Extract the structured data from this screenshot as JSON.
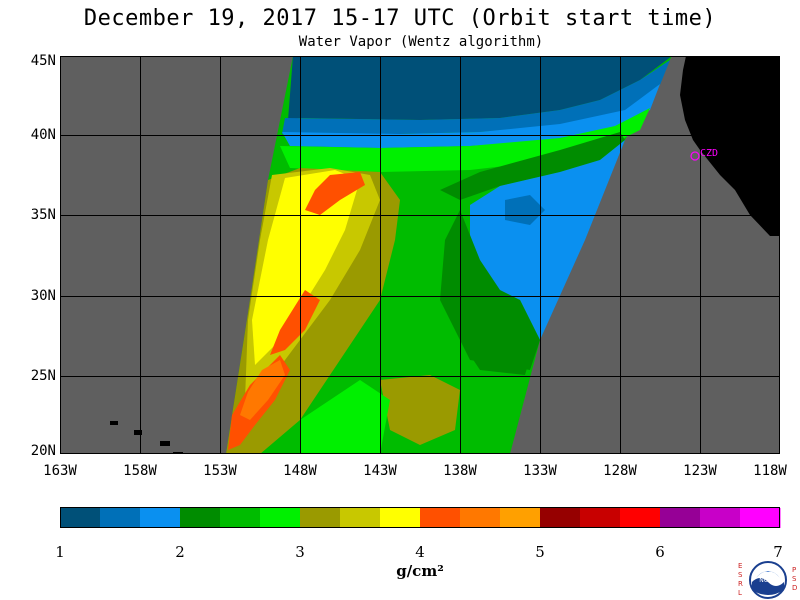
{
  "header": {
    "title": "December 19, 2017  15-17 UTC  (Orbit start time)",
    "subtitle": "Water Vapor (Wentz algorithm)"
  },
  "map": {
    "lat_labels": [
      "45N",
      "40N",
      "35N",
      "30N",
      "25N",
      "20N"
    ],
    "lon_labels": [
      "163W",
      "158W",
      "153W",
      "148W",
      "143W",
      "138W",
      "133W",
      "128W",
      "123W",
      "118W"
    ],
    "station_label": "CZD",
    "colors": {
      "no_data": "#5f5f5f",
      "land": "#000000",
      "grid": "#000000",
      "station": "#ff00ff"
    }
  },
  "colorbar": {
    "labels": [
      "1",
      "2",
      "3",
      "4",
      "5",
      "6",
      "7"
    ],
    "units": "g/cm²",
    "colors": [
      "#005078",
      "#0070b8",
      "#0a90f0",
      "#008c00",
      "#00bc00",
      "#00f000",
      "#9a9a00",
      "#c8c800",
      "#ffff00",
      "#ff5000",
      "#ff7800",
      "#ffa000",
      "#960000",
      "#c80000",
      "#ff0000",
      "#960096",
      "#c800c8",
      "#ff00ff"
    ]
  },
  "logo": {
    "left_letters": "ESRL",
    "right_letters": "PSD",
    "emblem_text": "NOAA"
  }
}
